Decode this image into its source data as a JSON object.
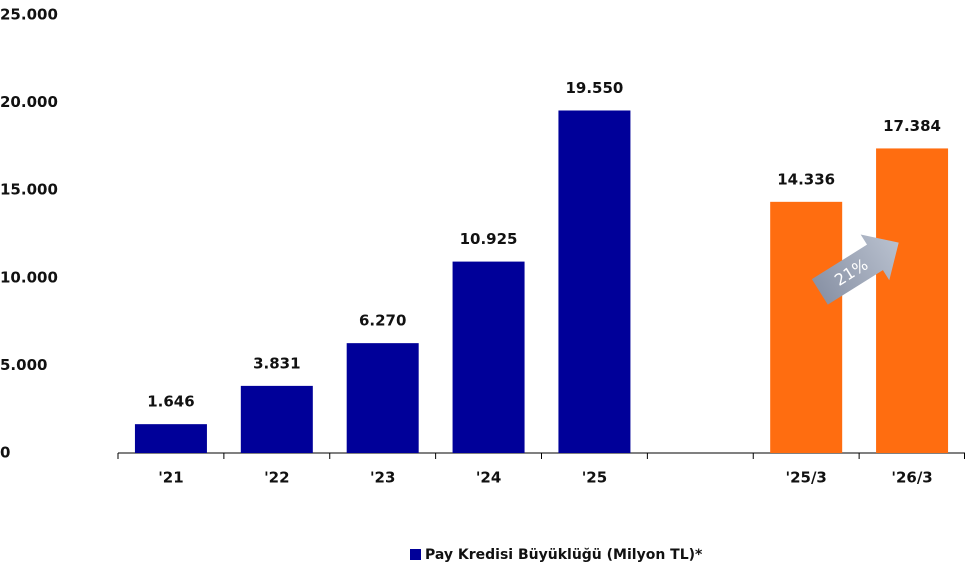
{
  "chart_data": {
    "type": "bar",
    "categories": [
      "'21",
      "'22",
      "'23",
      "'24",
      "'25",
      null,
      "'25/3",
      "'26/3"
    ],
    "series": [
      {
        "name": "Pay Kredisi Büyüklüğü (Milyon TL)*",
        "color": "#000099",
        "values": [
          1646,
          3831,
          6270,
          10925,
          19550,
          null,
          14336,
          17384
        ],
        "value_labels": [
          "1.646",
          "3.831",
          "6.270",
          "10.925",
          "19.550",
          null,
          "14.336",
          "17.384"
        ],
        "colors": [
          "#000099",
          "#000099",
          "#000099",
          "#000099",
          "#000099",
          null,
          "#ff6d10",
          "#ff6d10"
        ]
      }
    ],
    "ylim": [
      0,
      25000
    ],
    "yticks": [
      0,
      {
        "value": 5000,
        "label": "5.000"
      },
      {
        "value": 10000,
        "label": "10.000"
      },
      {
        "value": 15000,
        "label": "15.000"
      },
      {
        "value": 20000,
        "label": "20.000"
      },
      {
        "value": 25000,
        "label": "25.000"
      }
    ],
    "annotation": "21%",
    "grid": false
  }
}
